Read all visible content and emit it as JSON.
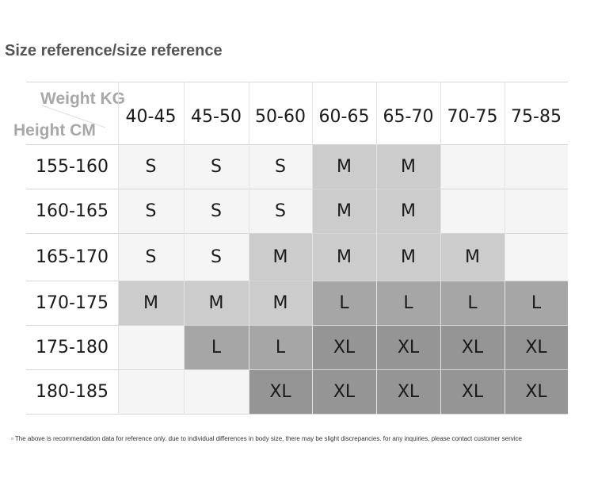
{
  "title": "Size reference/size reference",
  "header": {
    "weight_label": "Weight KG",
    "height_label": "Height CM"
  },
  "weights": [
    "40-45",
    "45-50",
    "50-60",
    "60-65",
    "65-70",
    "70-75",
    "75-85"
  ],
  "heights": [
    "155-160",
    "160-165",
    "165-170",
    "170-175",
    "175-180",
    "180-185"
  ],
  "sizes": [
    [
      "S",
      "S",
      "S",
      "M",
      "M",
      "",
      ""
    ],
    [
      "S",
      "S",
      "S",
      "M",
      "M",
      "",
      ""
    ],
    [
      "S",
      "S",
      "M",
      "M",
      "M",
      "M",
      ""
    ],
    [
      "M",
      "M",
      "M",
      "L",
      "L",
      "L",
      "L"
    ],
    [
      "",
      "L",
      "L",
      "XL",
      "XL",
      "XL",
      "XL"
    ],
    [
      "",
      "",
      "XL",
      "XL",
      "XL",
      "XL",
      "XL"
    ]
  ],
  "colors": {
    "empty": "#f5f5f5",
    "S": "#f5f5f5",
    "M": "#cccccc",
    "L": "#a6a6a6",
    "XL": "#959595"
  },
  "note": "▫ The above is recommendation data for reference only. due to individual differences in body size, there may be slight discrepancies. for any inquiries, please contact customer service"
}
